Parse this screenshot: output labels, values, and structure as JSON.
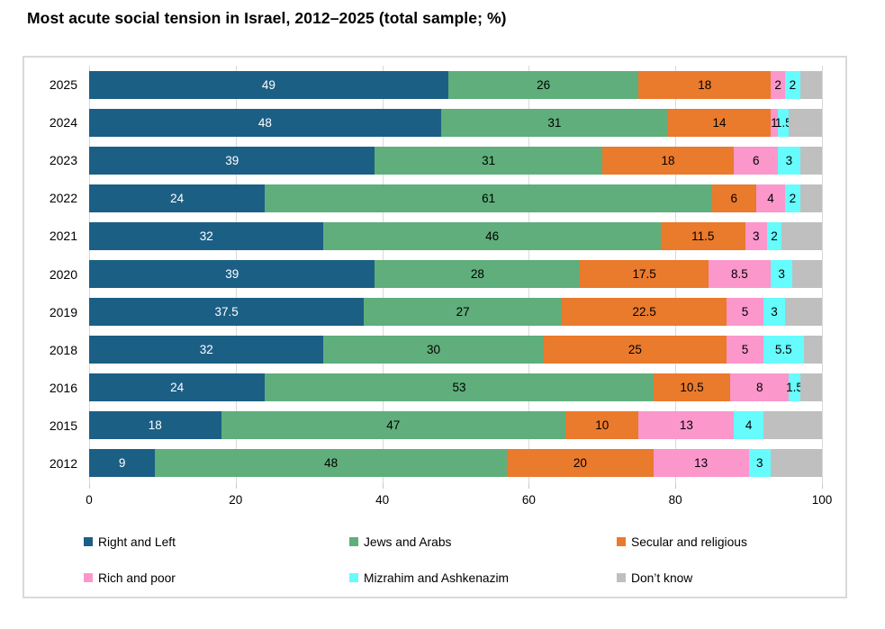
{
  "title": "Most acute social tension in Israel, 2012–2025 (total sample; %)",
  "chart_data": {
    "type": "bar",
    "variant": "horizontal-stacked",
    "title": "Most acute social tension in Israel, 2012–2025 (total sample; %)",
    "categories": [
      "2025",
      "2024",
      "2023",
      "2022",
      "2021",
      "2020",
      "2019",
      "2018",
      "2016",
      "2015",
      "2012"
    ],
    "series": [
      {
        "name": "Right and Left",
        "color": "#1c5f85",
        "label_color": "#ffffff",
        "show_labels": true,
        "values": [
          49,
          48,
          39,
          24,
          32,
          39,
          37.5,
          32,
          24,
          18,
          9
        ]
      },
      {
        "name": "Jews and Arabs",
        "color": "#5fae7b",
        "label_color": "#000000",
        "show_labels": true,
        "values": [
          26,
          31,
          31,
          61,
          46,
          28,
          27,
          30,
          53,
          47,
          48
        ]
      },
      {
        "name": "Secular and religious",
        "color": "#ea7a2c",
        "label_color": "#000000",
        "show_labels": true,
        "values": [
          18,
          14,
          18,
          6,
          11.5,
          17.5,
          22.5,
          25,
          10.5,
          10,
          20
        ]
      },
      {
        "name": "Rich and poor",
        "color": "#fb97cb",
        "label_color": "#000000",
        "show_labels": true,
        "values": [
          2,
          1,
          6,
          4,
          3,
          8.5,
          5,
          5,
          8,
          13,
          13
        ]
      },
      {
        "name": "Mizrahim and Ashkenazim",
        "color": "#66fbfd",
        "label_color": "#000000",
        "show_labels": true,
        "values": [
          2,
          1.5,
          3,
          2,
          2,
          3,
          3,
          5.5,
          1.5,
          4,
          3
        ]
      },
      {
        "name": "Don’t know",
        "color": "#bfbfbf",
        "label_color": "#000000",
        "show_labels": false,
        "values": [
          3,
          4.5,
          3,
          3,
          5.5,
          4,
          5,
          2.5,
          3,
          8,
          7
        ]
      }
    ],
    "xlabel": "",
    "ylabel": "",
    "xlim": [
      0,
      100
    ],
    "x_ticks": [
      0,
      20,
      40,
      60,
      80,
      100
    ],
    "grid": "vertical",
    "gridline_color": "#d9d9d9",
    "legend_position": "bottom"
  }
}
